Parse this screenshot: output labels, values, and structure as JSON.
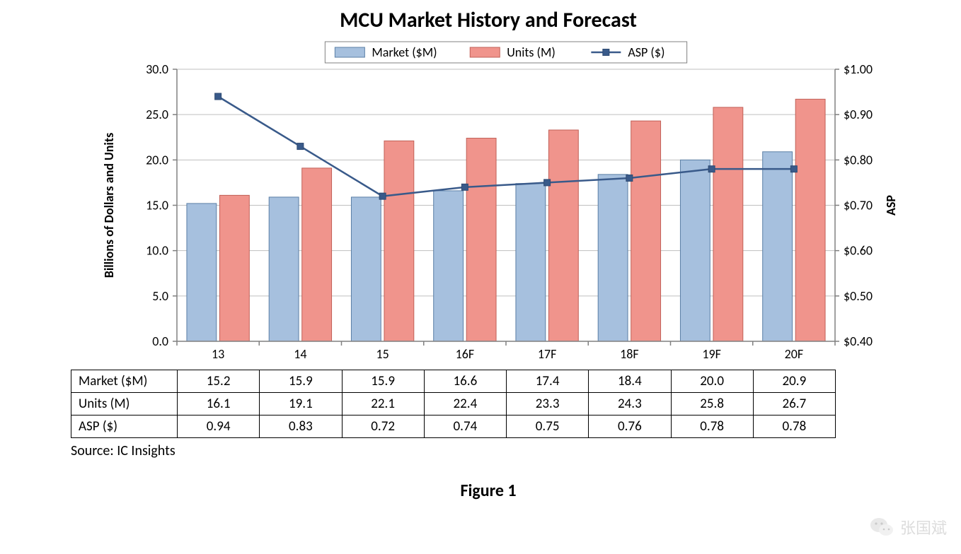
{
  "chart": {
    "type": "bar+line",
    "title": "MCU Market History and Forecast",
    "title_fontsize": 30,
    "background_color": "#ffffff",
    "plot_background": "#ffffff",
    "categories": [
      "13",
      "14",
      "15",
      "16F",
      "17F",
      "18F",
      "19F",
      "20F"
    ],
    "series": {
      "market": {
        "label": "Market ($M)",
        "type": "bar",
        "values": [
          15.2,
          15.9,
          15.9,
          16.6,
          17.4,
          18.4,
          20.0,
          20.9
        ],
        "color": "#a6c0de",
        "border_color": "#5b7fa6"
      },
      "units": {
        "label": "Units (M)",
        "type": "bar",
        "values": [
          16.1,
          19.1,
          22.1,
          22.4,
          23.3,
          24.3,
          25.8,
          26.7
        ],
        "color": "#f0948c",
        "border_color": "#c16057"
      },
      "asp": {
        "label": "ASP ($)",
        "type": "line",
        "values": [
          0.94,
          0.83,
          0.72,
          0.74,
          0.75,
          0.76,
          0.78,
          0.78
        ],
        "line_color": "#395a8a",
        "marker_shape": "square",
        "marker_size": 9,
        "marker_fill": "#395a8a",
        "marker_border": "#2e4a72",
        "line_width": 2.5
      }
    },
    "left_axis": {
      "label": "Billions of Dollars and Units",
      "min": 0.0,
      "max": 30.0,
      "tick_step": 5.0,
      "ticks": [
        "0.0",
        "5.0",
        "10.0",
        "15.0",
        "20.0",
        "25.0",
        "30.0"
      ],
      "label_fontsize": 18,
      "tick_fontsize": 18
    },
    "right_axis": {
      "label": "ASP",
      "min": 0.4,
      "max": 1.0,
      "tick_step": 0.1,
      "ticks": [
        "$0.40",
        "$0.50",
        "$0.60",
        "$0.70",
        "$0.80",
        "$0.90",
        "$1.00"
      ],
      "label_fontsize": 18,
      "tick_fontsize": 18
    },
    "gridline_color": "#bfbfbf",
    "axis_line_color": "#808080",
    "legend": {
      "position": "top-center",
      "border_color": "#808080",
      "background": "#ffffff",
      "fontsize": 18
    },
    "bar_width_ratio": 0.36,
    "bar_gap_ratio": 0.04,
    "table": {
      "row_labels": [
        "Market ($M)",
        "Units (M)",
        "ASP ($)"
      ],
      "rows": [
        [
          "15.2",
          "15.9",
          "15.9",
          "16.6",
          "17.4",
          "18.4",
          "20.0",
          "20.9"
        ],
        [
          "16.1",
          "19.1",
          "22.1",
          "22.4",
          "23.3",
          "24.3",
          "25.8",
          "26.7"
        ],
        [
          "0.94",
          "0.83",
          "0.72",
          "0.74",
          "0.75",
          "0.76",
          "0.78",
          "0.78"
        ]
      ],
      "border_color": "#000000",
      "fontsize": 19
    }
  },
  "source_text": "Source:  IC Insights",
  "figure_label": "Figure 1",
  "watermark": {
    "text": "张国斌",
    "icon_bg": "#d8d8d8",
    "icon_dots": "#a0a0a0"
  }
}
